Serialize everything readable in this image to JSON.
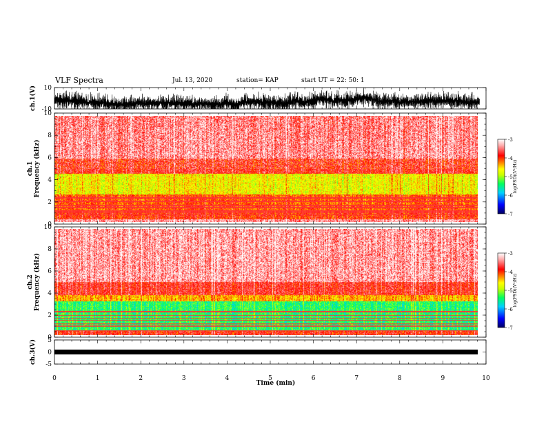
{
  "header": {
    "title": "VLF Spectra",
    "date": "Jul. 13, 2020",
    "station": "station= KAP",
    "start": "start UT = 22: 50: 1"
  },
  "chart_data": [
    {
      "type": "line",
      "name": "waveform-ch1",
      "ylabel": "ch.1(V)",
      "yticks": [
        "10",
        "-10"
      ],
      "ylim": [
        -10,
        10
      ],
      "xlim": [
        0,
        9.85
      ]
    },
    {
      "type": "heatmap",
      "name": "spectrogram-ch1",
      "ylabel": "ch.1 Frequency (kHz)",
      "yticks": [
        "0",
        "2",
        "4",
        "6",
        "8",
        "10"
      ],
      "ylim": [
        0,
        10
      ],
      "xlim": [
        0,
        9.85
      ],
      "colorbar": {
        "label": "log(PSD)(V²/Hz)",
        "ticks": [
          "-3",
          "-4",
          "-5",
          "-6",
          "-7"
        ],
        "range": [
          -7,
          -3
        ]
      }
    },
    {
      "type": "heatmap",
      "name": "spectrogram-ch2",
      "ylabel": "ch.2 Frequency (kHz)",
      "yticks": [
        "0",
        "2",
        "4",
        "6",
        "8",
        "10"
      ],
      "ylim": [
        0,
        10
      ],
      "xlim": [
        0,
        9.85
      ],
      "colorbar": {
        "label": "log(PSD)(V²/Hz)",
        "ticks": [
          "-3",
          "-4",
          "-5",
          "-6",
          "-7"
        ],
        "range": [
          -7,
          -3
        ]
      }
    },
    {
      "type": "line",
      "name": "waveform-ch3",
      "ylabel": "ch.3(V)",
      "yticks": [
        "5",
        "0",
        "-5"
      ],
      "ylim": [
        -5,
        5
      ],
      "xlim": [
        0,
        9.85
      ]
    }
  ],
  "xaxis": {
    "label": "Time (min)",
    "ticks": [
      "0",
      "1",
      "2",
      "3",
      "4",
      "5",
      "6",
      "7",
      "8",
      "9",
      "10"
    ],
    "range": [
      0,
      10
    ]
  },
  "colors": {
    "spectrum": [
      "#000060",
      "#0000ff",
      "#00d0ff",
      "#00ff60",
      "#c8ff00",
      "#ffff00",
      "#ff7000",
      "#ff0000",
      "#ffd0d0",
      "#ffffff"
    ]
  }
}
